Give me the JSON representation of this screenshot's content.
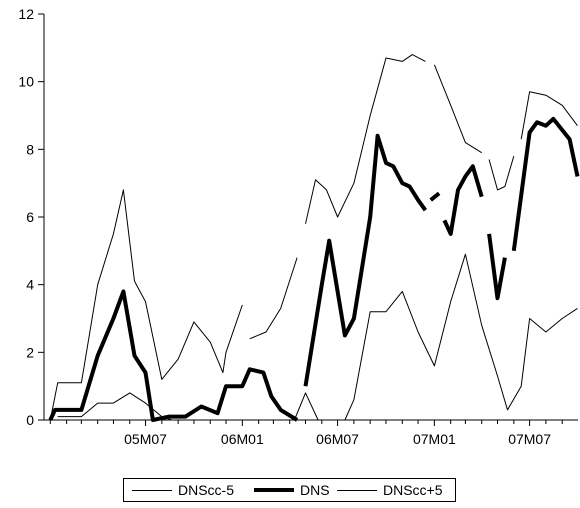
{
  "chart_data": {
    "type": "line",
    "ylim": [
      0,
      12
    ],
    "yticks": [
      0,
      2,
      4,
      6,
      8,
      10,
      12
    ],
    "xticks": [
      "05M07",
      "06M01",
      "06M07",
      "07M01",
      "07M07"
    ],
    "grid": false,
    "legend_position": "bottom",
    "series": [
      {
        "name": "DNScc-5",
        "style": "thin",
        "color": "#000000",
        "points": [
          [
            "2005-01-15",
            0.1
          ],
          [
            "2005-03-01",
            0.1
          ],
          [
            "2005-04-01",
            0.5
          ],
          [
            "2005-05-01",
            0.5
          ],
          [
            "2005-06-01",
            0.8
          ],
          [
            "2005-07-01",
            0.5
          ],
          [
            "2005-08-01",
            0.1
          ],
          [
            "2005-08-20",
            0.0
          ],
          null,
          [
            "2006-04-10",
            0.0
          ],
          [
            "2006-05-01",
            0.8
          ],
          [
            "2006-05-25",
            0.0
          ],
          null,
          [
            "2006-07-15",
            0.0
          ],
          [
            "2006-08-01",
            0.6
          ],
          [
            "2006-09-01",
            3.2
          ],
          [
            "2006-10-01",
            3.2
          ],
          [
            "2006-11-01",
            3.8
          ],
          [
            "2006-12-01",
            2.6
          ],
          [
            "2007-01-01",
            1.6
          ],
          [
            "2007-02-01",
            3.5
          ],
          [
            "2007-03-01",
            4.9
          ],
          [
            "2007-04-01",
            2.8
          ],
          [
            "2007-05-01",
            1.3
          ],
          [
            "2007-05-20",
            0.3
          ],
          [
            "2007-06-15",
            1.0
          ],
          [
            "2007-07-01",
            3.0
          ],
          [
            "2007-08-01",
            2.6
          ],
          [
            "2007-09-01",
            3.0
          ],
          [
            "2007-09-30",
            3.3
          ]
        ]
      },
      {
        "name": "DNS",
        "style": "thick",
        "color": "#000000",
        "points": [
          [
            "2005-01-01",
            0.0
          ],
          [
            "2005-01-10",
            0.3
          ],
          [
            "2005-03-01",
            0.3
          ],
          [
            "2005-04-01",
            1.9
          ],
          [
            "2005-05-01",
            3.0
          ],
          [
            "2005-05-20",
            3.8
          ],
          [
            "2005-06-10",
            1.9
          ],
          [
            "2005-07-01",
            1.4
          ],
          [
            "2005-07-15",
            0.0
          ],
          [
            "2005-08-15",
            0.1
          ],
          [
            "2005-09-15",
            0.1
          ],
          [
            "2005-10-15",
            0.4
          ],
          [
            "2005-11-15",
            0.2
          ],
          [
            "2005-12-01",
            1.0
          ],
          [
            "2006-01-01",
            1.0
          ],
          [
            "2006-01-15",
            1.5
          ],
          [
            "2006-02-10",
            1.4
          ],
          [
            "2006-02-25",
            0.7
          ],
          [
            "2006-03-15",
            0.3
          ],
          [
            "2006-04-15",
            0.0
          ],
          null,
          [
            "2006-05-01",
            1.0
          ],
          [
            "2006-06-01",
            4.0
          ],
          [
            "2006-06-15",
            5.3
          ],
          [
            "2006-07-01",
            3.8
          ],
          [
            "2006-07-15",
            2.5
          ],
          [
            "2006-08-01",
            3.0
          ],
          [
            "2006-09-01",
            6.0
          ],
          [
            "2006-09-15",
            8.4
          ],
          [
            "2006-10-01",
            7.6
          ],
          [
            "2006-10-15",
            7.5
          ],
          [
            "2006-11-01",
            7.0
          ],
          [
            "2006-11-15",
            6.9
          ],
          [
            "2006-12-01",
            6.5
          ],
          [
            "2006-12-15",
            6.2
          ],
          null,
          [
            "2006-12-25",
            6.5
          ],
          [
            "2007-01-10",
            6.7
          ],
          null,
          [
            "2007-01-20",
            5.9
          ],
          [
            "2007-02-01",
            5.5
          ],
          [
            "2007-02-15",
            6.8
          ],
          [
            "2007-03-01",
            7.2
          ],
          [
            "2007-03-15",
            7.5
          ],
          [
            "2007-04-01",
            6.6
          ],
          null,
          [
            "2007-04-15",
            5.5
          ],
          [
            "2007-05-01",
            3.6
          ],
          [
            "2007-05-15",
            4.8
          ],
          null,
          [
            "2007-06-01",
            5.0
          ],
          [
            "2007-07-01",
            8.5
          ],
          [
            "2007-07-15",
            8.8
          ],
          [
            "2007-08-01",
            8.7
          ],
          [
            "2007-08-15",
            8.9
          ],
          [
            "2007-09-15",
            8.3
          ],
          [
            "2007-09-30",
            7.2
          ]
        ]
      },
      {
        "name": "DNScc+5",
        "style": "thin",
        "color": "#000000",
        "points": [
          [
            "2005-01-01",
            0.0
          ],
          [
            "2005-01-15",
            1.1
          ],
          [
            "2005-03-01",
            1.1
          ],
          [
            "2005-04-01",
            4.0
          ],
          [
            "2005-05-01",
            5.5
          ],
          [
            "2005-05-20",
            6.8
          ],
          [
            "2005-06-10",
            4.1
          ],
          [
            "2005-07-01",
            3.5
          ],
          [
            "2005-08-01",
            1.2
          ],
          [
            "2005-09-01",
            1.8
          ],
          [
            "2005-10-01",
            2.9
          ],
          [
            "2005-11-01",
            2.3
          ],
          [
            "2005-11-25",
            1.4
          ],
          [
            "2005-12-01",
            2.0
          ],
          [
            "2006-01-01",
            3.4
          ],
          null,
          [
            "2006-01-15",
            2.4
          ],
          [
            "2006-02-15",
            2.6
          ],
          [
            "2006-03-15",
            3.3
          ],
          [
            "2006-04-15",
            4.8
          ],
          null,
          [
            "2006-05-01",
            5.8
          ],
          [
            "2006-05-20",
            7.1
          ],
          [
            "2006-06-10",
            6.8
          ],
          [
            "2006-07-01",
            6.0
          ],
          [
            "2006-08-01",
            7.0
          ],
          [
            "2006-09-01",
            9.0
          ],
          [
            "2006-10-01",
            10.7
          ],
          [
            "2006-11-01",
            10.6
          ],
          [
            "2006-11-20",
            10.8
          ],
          [
            "2006-12-15",
            10.6
          ],
          null,
          [
            "2007-01-01",
            10.5
          ],
          [
            "2007-02-01",
            9.3
          ],
          [
            "2007-03-01",
            8.2
          ],
          [
            "2007-04-01",
            7.9
          ],
          null,
          [
            "2007-04-15",
            7.7
          ],
          [
            "2007-05-01",
            6.8
          ],
          [
            "2007-05-15",
            6.9
          ],
          [
            "2007-06-01",
            7.8
          ],
          null,
          [
            "2007-06-15",
            8.3
          ],
          [
            "2007-07-01",
            9.7
          ],
          [
            "2007-08-01",
            9.6
          ],
          [
            "2007-09-01",
            9.3
          ],
          [
            "2007-09-30",
            8.7
          ]
        ]
      }
    ]
  }
}
